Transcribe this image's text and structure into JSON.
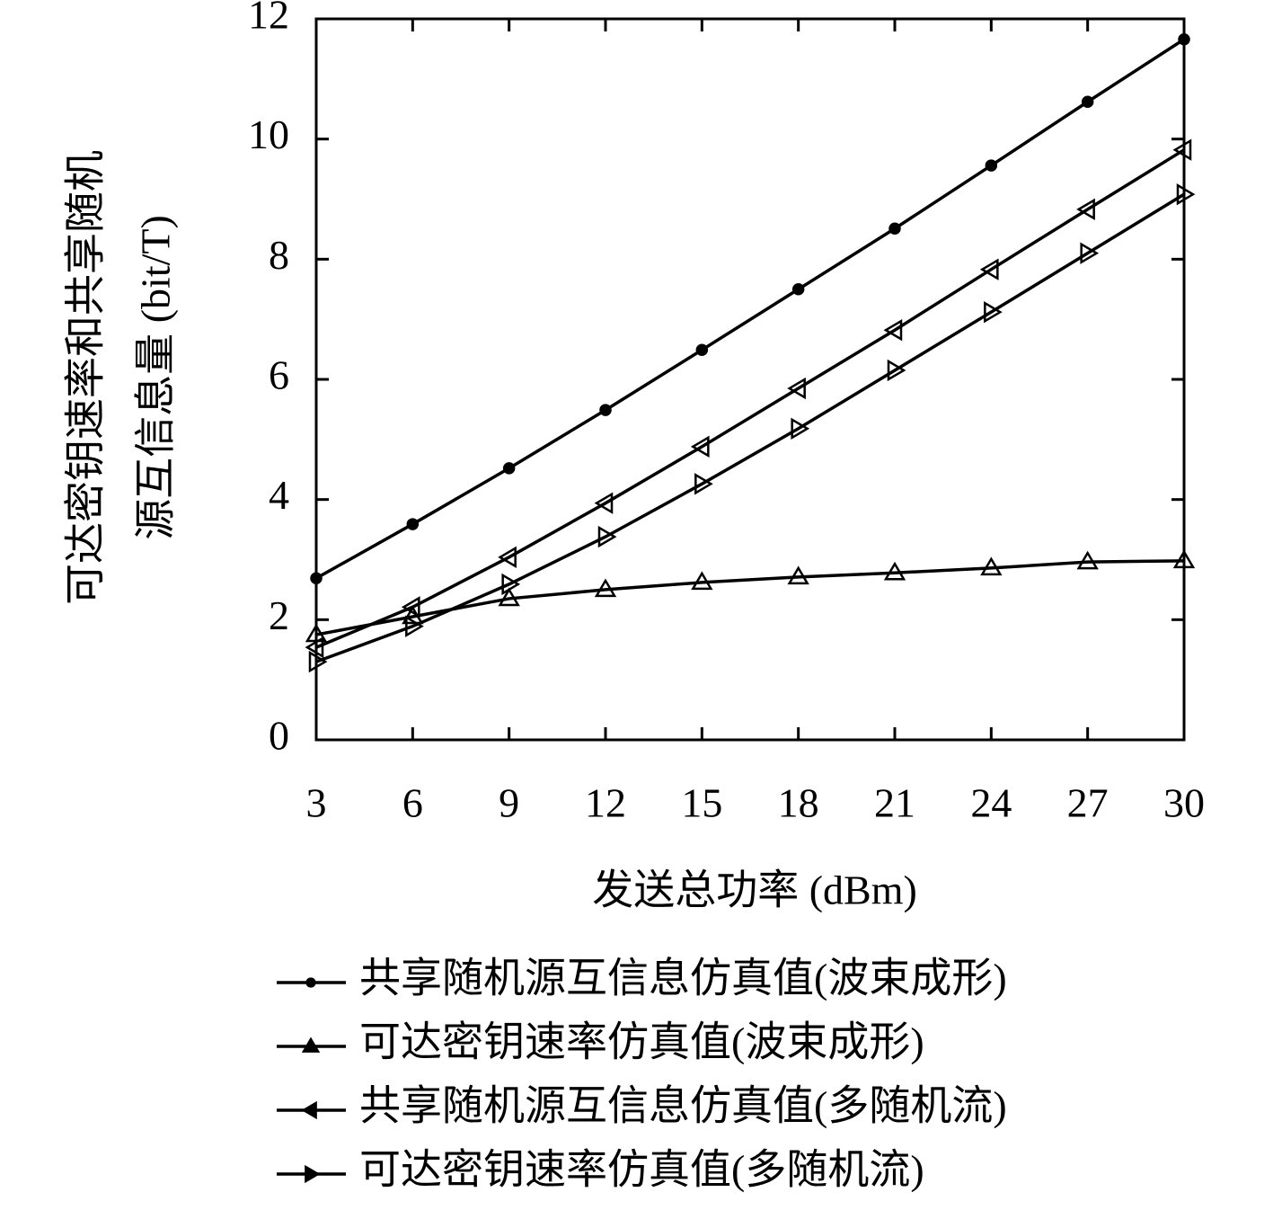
{
  "chart_data": {
    "type": "line",
    "x_label": "发送总功率 (dBm)",
    "y_label": [
      "可达密钥速率和共享随机",
      "源互信息量 (bit/T)"
    ],
    "x": [
      3,
      6,
      9,
      12,
      15,
      18,
      21,
      24,
      27,
      30
    ],
    "xlim": [
      3,
      30
    ],
    "xticks": [
      3,
      6,
      9,
      12,
      15,
      18,
      21,
      24,
      27,
      30
    ],
    "ylim": [
      0,
      12
    ],
    "yticks": [
      0,
      2,
      4,
      6,
      8,
      10,
      12
    ],
    "legend": "bottom",
    "series": [
      {
        "name": "共享随机源互信息仿真值(波束成形)",
        "color": "#000000",
        "marker": "circle",
        "values": [
          2.69,
          3.59,
          4.52,
          5.49,
          6.49,
          7.5,
          8.51,
          9.56,
          10.62,
          11.66
        ]
      },
      {
        "name": "可达密钥速率仿真值(波束成形)",
        "color": "#000000",
        "marker": "triangle-up",
        "values": [
          1.75,
          2.05,
          2.35,
          2.5,
          2.62,
          2.71,
          2.78,
          2.86,
          2.96,
          2.98
        ]
      },
      {
        "name": "共享随机源互信息仿真值(多随机流)",
        "color": "#000000",
        "marker": "triangle-left",
        "values": [
          1.54,
          2.21,
          3.04,
          3.94,
          4.88,
          5.85,
          6.82,
          7.83,
          8.83,
          9.82
        ]
      },
      {
        "name": "可达密钥速率仿真值(多随机流)",
        "color": "#000000",
        "marker": "triangle-right",
        "values": [
          1.3,
          1.89,
          2.59,
          3.38,
          4.26,
          5.18,
          6.15,
          7.12,
          8.1,
          9.08
        ]
      }
    ]
  }
}
